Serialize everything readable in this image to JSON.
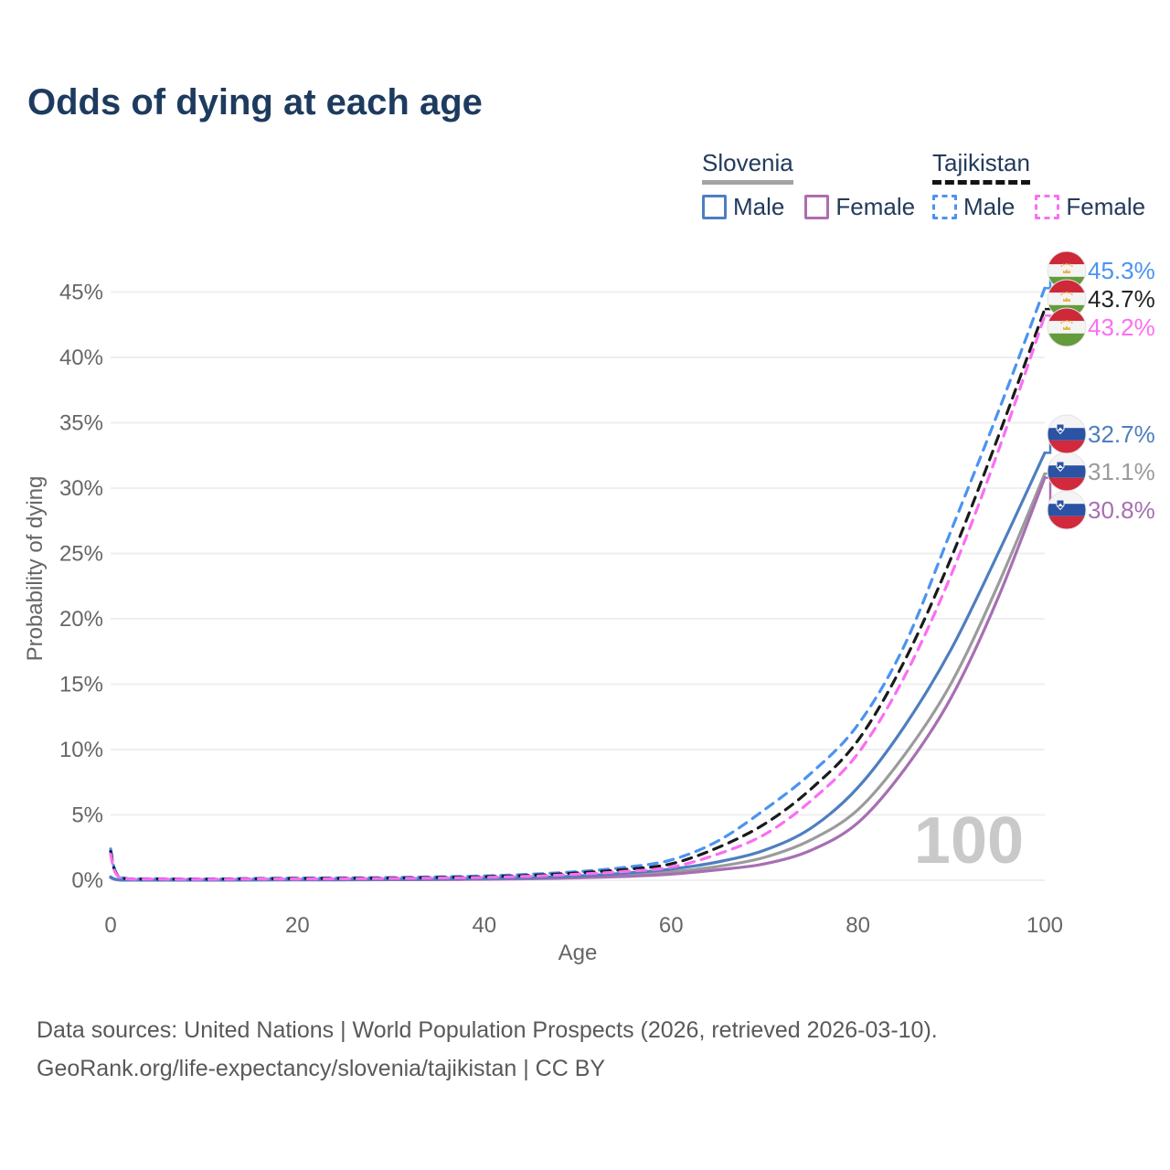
{
  "header": {
    "title": "Odds of dying at each age"
  },
  "legend": {
    "groups": [
      {
        "name": "Slovenia",
        "line_style": "solid",
        "underline_color": "#a3a3a3",
        "items": [
          {
            "label": "Male",
            "color": "#4d7ec0"
          },
          {
            "label": "Female",
            "color": "#b06cb0"
          }
        ]
      },
      {
        "name": "Tajikistan",
        "line_style": "dashed",
        "underline_color": "#141414",
        "items": [
          {
            "label": "Male",
            "color": "#4b93f1"
          },
          {
            "label": "Female",
            "color": "#fb6ef2"
          }
        ]
      }
    ]
  },
  "chart_data": {
    "type": "line",
    "title": "Odds of dying at each age",
    "xlabel": "Age",
    "ylabel": "Probability of dying",
    "watermark": "100",
    "xlim": [
      0,
      100
    ],
    "ylim_percent": [
      0,
      46
    ],
    "x_ticks": [
      0,
      20,
      40,
      60,
      80,
      100
    ],
    "y_ticks_percent": [
      0,
      5,
      10,
      15,
      20,
      25,
      30,
      35,
      40,
      45
    ],
    "grid": "horizontal",
    "legend_position": "top-right",
    "x": [
      0,
      1,
      5,
      10,
      15,
      20,
      25,
      30,
      35,
      40,
      45,
      50,
      55,
      60,
      65,
      70,
      75,
      80,
      85,
      90,
      95,
      100
    ],
    "series": [
      {
        "id": "slovenia-both",
        "name": "Slovenia",
        "country": "Slovenia",
        "sex": "both",
        "color": "#9b9b9b",
        "dash": false,
        "flag": "slovenia",
        "end_label": "31.1%",
        "label_color": "#9b9b9b",
        "values_percent": [
          0.22,
          0.02,
          0.01,
          0.01,
          0.02,
          0.04,
          0.05,
          0.06,
          0.08,
          0.11,
          0.16,
          0.25,
          0.41,
          0.64,
          1.05,
          1.75,
          3.1,
          5.4,
          9.6,
          15.1,
          22.6,
          31.1
        ]
      },
      {
        "id": "slovenia-female",
        "name": "Slovenia Female",
        "country": "Slovenia",
        "sex": "female",
        "color": "#a76fb2",
        "dash": false,
        "flag": "slovenia",
        "end_label": "30.8%",
        "label_color": "#a76fb2",
        "values_percent": [
          0.2,
          0.02,
          0.01,
          0.01,
          0.02,
          0.02,
          0.03,
          0.04,
          0.05,
          0.08,
          0.11,
          0.18,
          0.29,
          0.46,
          0.8,
          1.25,
          2.3,
          4.4,
          8.5,
          14.0,
          21.6,
          30.8
        ]
      },
      {
        "id": "slovenia-male",
        "name": "Slovenia Male",
        "country": "Slovenia",
        "sex": "male",
        "color": "#4d7ec0",
        "dash": false,
        "flag": "slovenia",
        "end_label": "32.7%",
        "label_color": "#4d7ec0",
        "values_percent": [
          0.25,
          0.03,
          0.01,
          0.01,
          0.03,
          0.05,
          0.06,
          0.08,
          0.1,
          0.14,
          0.21,
          0.33,
          0.54,
          0.85,
          1.4,
          2.3,
          4.0,
          7.1,
          11.8,
          17.7,
          25.0,
          32.7
        ]
      },
      {
        "id": "tajikistan-male",
        "name": "Tajikistan Male",
        "country": "Tajikistan",
        "sex": "male",
        "color": "#4b93f1",
        "dash": true,
        "flag": "tajikistan",
        "end_label": "45.3%",
        "label_color": "#4b93f1",
        "values_percent": [
          2.4,
          0.25,
          0.12,
          0.1,
          0.13,
          0.16,
          0.18,
          0.21,
          0.26,
          0.33,
          0.46,
          0.66,
          0.98,
          1.55,
          3.0,
          5.4,
          8.2,
          11.9,
          18.0,
          26.8,
          35.8,
          45.3
        ]
      },
      {
        "id": "tajikistan-both",
        "name": "Tajikistan",
        "country": "Tajikistan",
        "sex": "both",
        "color": "#1a1a1a",
        "dash": true,
        "flag": "tajikistan",
        "end_label": "43.7%",
        "label_color": "#222222",
        "values_percent": [
          2.2,
          0.22,
          0.1,
          0.08,
          0.11,
          0.13,
          0.15,
          0.17,
          0.21,
          0.27,
          0.38,
          0.56,
          0.82,
          1.25,
          2.5,
          4.3,
          7.0,
          10.7,
          16.8,
          24.7,
          33.9,
          43.7
        ]
      },
      {
        "id": "tajikistan-female",
        "name": "Tajikistan Female",
        "country": "Tajikistan",
        "sex": "female",
        "color": "#fb6ef2",
        "dash": true,
        "flag": "tajikistan",
        "end_label": "43.2%",
        "label_color": "#fb6ef2",
        "values_percent": [
          2.0,
          0.2,
          0.09,
          0.07,
          0.09,
          0.1,
          0.12,
          0.14,
          0.17,
          0.22,
          0.31,
          0.46,
          0.67,
          1.0,
          2.0,
          3.5,
          6.1,
          9.7,
          15.6,
          23.4,
          32.8,
          43.2
        ]
      }
    ]
  },
  "footer": {
    "line1": "Data sources: United Nations | World Population Prospects (2026, retrieved 2026-03-10).",
    "line2": "GeoRank.org/life-expectancy/slovenia/tajikistan | CC BY"
  },
  "colors": {
    "title": "#1d3b5e",
    "axis_text": "#666666",
    "gridline": "#efefef",
    "watermark": "#c9c9c9",
    "footer_text": "#595959"
  }
}
